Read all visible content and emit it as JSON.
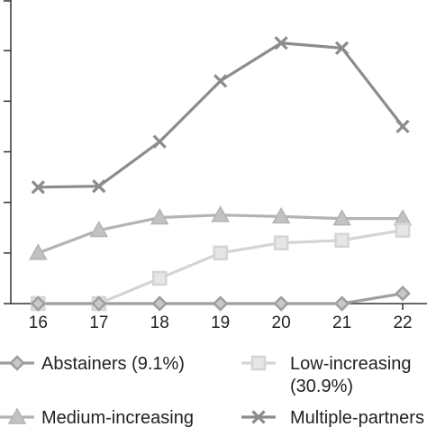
{
  "chart_data": {
    "type": "line",
    "title": "",
    "xlabel": "",
    "ylabel": "",
    "x": [
      16,
      17,
      18,
      19,
      20,
      21,
      22
    ],
    "xlim": [
      15.55,
      22.4
    ],
    "ylim": [
      0,
      6
    ],
    "yticks": [
      0,
      1,
      2,
      3,
      4,
      5,
      6
    ],
    "show_ytick_labels": false,
    "grid": false,
    "legend_position": "bottom",
    "series": [
      {
        "key": "abstainers",
        "name": "Abstainers (9.1%)",
        "legend_lines": [
          "Abstainers (9.1%)"
        ],
        "marker": "diamond",
        "color": "#9e9e9e",
        "values": [
          0,
          0,
          0,
          0,
          0,
          0,
          0.2
        ]
      },
      {
        "key": "low",
        "name": "Low-increasing (30.9%)",
        "legend_lines": [
          "Low-increasing",
          "(30.9%)"
        ],
        "marker": "square",
        "color": "#d4d4d4",
        "values": [
          0,
          0,
          0.5,
          1.0,
          1.2,
          1.25,
          1.45
        ]
      },
      {
        "key": "medium",
        "name": "Medium-increasing",
        "legend_lines": [
          "Medium-increasing"
        ],
        "marker": "triangle",
        "color": "#b3b3b3",
        "values": [
          1.0,
          1.45,
          1.7,
          1.75,
          1.72,
          1.68,
          1.68
        ]
      },
      {
        "key": "multiple",
        "name": "Multiple-partners",
        "legend_lines": [
          "Multiple-partners"
        ],
        "marker": "x",
        "color": "#8c8c8c",
        "values": [
          2.3,
          2.32,
          3.2,
          4.4,
          5.15,
          5.05,
          3.5
        ]
      }
    ]
  }
}
